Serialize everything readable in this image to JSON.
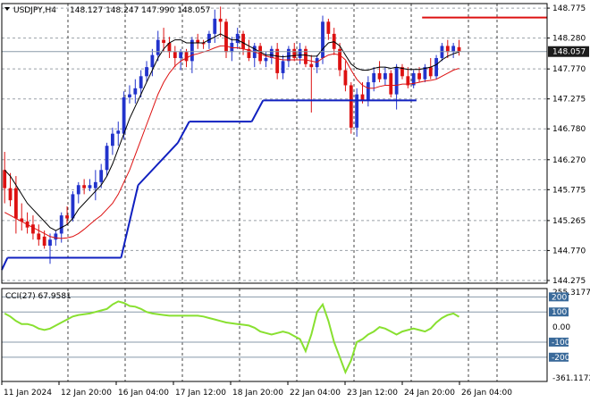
{
  "header": {
    "symbol_timeframe": "USDJPY,H4",
    "ohlc": "148.127 148.247 147.990 148.057",
    "current_price": "148.057"
  },
  "colors": {
    "bull": "#2233cc",
    "bear": "#dd1111",
    "ma_fast": "#000000",
    "ma_slow": "#dd1111",
    "support": "#1020c0",
    "resistance": "#dd1111",
    "cci": "#88e030",
    "grid": "#9aa0a8",
    "price_tag": "#1c1c1c"
  },
  "chart_data": [
    {
      "type": "candlestick",
      "title": "USDJPY,H4",
      "price_axis_labels": [
        "148.775",
        "148.280",
        "147.770",
        "147.275",
        "146.780",
        "146.270",
        "145.775",
        "145.265",
        "144.770",
        "144.275"
      ],
      "time_axis_labels": [
        "11 Jan 2024",
        "12 Jan 20:00",
        "16 Jan 04:00",
        "17 Jan 12:00",
        "18 Jan 20:00",
        "22 Jan 04:00",
        "23 Jan 12:00",
        "24 Jan 20:00",
        "26 Jan 04:00"
      ],
      "ylim": [
        144.23,
        148.85
      ],
      "candles": [
        {
          "o": 146.1,
          "h": 146.4,
          "l": 145.55,
          "c": 145.8
        },
        {
          "o": 145.8,
          "h": 146.05,
          "l": 145.5,
          "c": 145.6
        },
        {
          "o": 145.8,
          "h": 146.0,
          "l": 145.05,
          "c": 145.3
        },
        {
          "o": 145.3,
          "h": 145.55,
          "l": 145.1,
          "c": 145.25
        },
        {
          "o": 145.25,
          "h": 145.4,
          "l": 145.05,
          "c": 145.15
        },
        {
          "o": 145.2,
          "h": 145.35,
          "l": 144.95,
          "c": 145.05
        },
        {
          "o": 145.05,
          "h": 145.2,
          "l": 144.85,
          "c": 144.95
        },
        {
          "o": 145.0,
          "h": 145.1,
          "l": 144.8,
          "c": 144.85
        },
        {
          "o": 144.85,
          "h": 145.05,
          "l": 144.55,
          "c": 144.95
        },
        {
          "o": 144.95,
          "h": 145.1,
          "l": 144.85,
          "c": 145.05
        },
        {
          "o": 145.05,
          "h": 145.4,
          "l": 144.9,
          "c": 145.35
        },
        {
          "o": 145.35,
          "h": 145.5,
          "l": 145.2,
          "c": 145.3
        },
        {
          "o": 145.3,
          "h": 145.75,
          "l": 145.25,
          "c": 145.7
        },
        {
          "o": 145.7,
          "h": 145.9,
          "l": 145.55,
          "c": 145.85
        },
        {
          "o": 145.85,
          "h": 145.95,
          "l": 145.7,
          "c": 145.8
        },
        {
          "o": 145.8,
          "h": 145.95,
          "l": 145.75,
          "c": 145.85
        },
        {
          "o": 145.8,
          "h": 146.1,
          "l": 145.6,
          "c": 145.9
        },
        {
          "o": 145.9,
          "h": 146.2,
          "l": 145.8,
          "c": 146.1
        },
        {
          "o": 146.1,
          "h": 146.55,
          "l": 146.0,
          "c": 146.5
        },
        {
          "o": 146.5,
          "h": 146.8,
          "l": 146.35,
          "c": 146.7
        },
        {
          "o": 146.7,
          "h": 146.9,
          "l": 146.5,
          "c": 146.75
        },
        {
          "o": 146.7,
          "h": 147.4,
          "l": 146.6,
          "c": 147.3
        },
        {
          "o": 147.3,
          "h": 147.5,
          "l": 147.2,
          "c": 147.35
        },
        {
          "o": 147.35,
          "h": 147.6,
          "l": 147.2,
          "c": 147.45
        },
        {
          "o": 147.45,
          "h": 147.75,
          "l": 147.3,
          "c": 147.65
        },
        {
          "o": 147.65,
          "h": 147.9,
          "l": 147.55,
          "c": 147.8
        },
        {
          "o": 147.8,
          "h": 148.1,
          "l": 147.65,
          "c": 148.0
        },
        {
          "o": 148.0,
          "h": 148.4,
          "l": 147.9,
          "c": 148.25
        },
        {
          "o": 148.25,
          "h": 148.45,
          "l": 148.05,
          "c": 148.2
        },
        {
          "o": 148.2,
          "h": 148.3,
          "l": 147.95,
          "c": 148.05
        },
        {
          "o": 148.05,
          "h": 148.15,
          "l": 147.8,
          "c": 147.95
        },
        {
          "o": 147.95,
          "h": 148.1,
          "l": 147.75,
          "c": 148.05
        },
        {
          "o": 148.05,
          "h": 148.1,
          "l": 147.8,
          "c": 147.9
        },
        {
          "o": 147.9,
          "h": 148.3,
          "l": 147.7,
          "c": 148.25
        },
        {
          "o": 148.25,
          "h": 148.35,
          "l": 148.1,
          "c": 148.2
        },
        {
          "o": 148.2,
          "h": 148.25,
          "l": 148.1,
          "c": 148.18
        },
        {
          "o": 148.2,
          "h": 148.4,
          "l": 148.1,
          "c": 148.35
        },
        {
          "o": 148.35,
          "h": 148.75,
          "l": 148.2,
          "c": 148.6
        },
        {
          "o": 148.6,
          "h": 148.8,
          "l": 148.3,
          "c": 148.55
        },
        {
          "o": 148.55,
          "h": 148.6,
          "l": 147.95,
          "c": 148.05
        },
        {
          "o": 148.05,
          "h": 148.3,
          "l": 147.9,
          "c": 148.2
        },
        {
          "o": 148.2,
          "h": 148.45,
          "l": 148.1,
          "c": 148.35
        },
        {
          "o": 148.35,
          "h": 148.4,
          "l": 148.0,
          "c": 148.1
        },
        {
          "o": 148.1,
          "h": 148.25,
          "l": 147.9,
          "c": 147.95
        },
        {
          "o": 147.95,
          "h": 148.2,
          "l": 147.8,
          "c": 148.15
        },
        {
          "o": 148.15,
          "h": 148.2,
          "l": 147.85,
          "c": 147.9
        },
        {
          "o": 147.9,
          "h": 148.05,
          "l": 147.8,
          "c": 147.95
        },
        {
          "o": 147.95,
          "h": 148.15,
          "l": 147.85,
          "c": 148.1
        },
        {
          "o": 148.1,
          "h": 148.2,
          "l": 147.6,
          "c": 147.7
        },
        {
          "o": 147.7,
          "h": 148.0,
          "l": 147.6,
          "c": 147.9
        },
        {
          "o": 147.9,
          "h": 148.15,
          "l": 147.8,
          "c": 148.1
        },
        {
          "o": 148.1,
          "h": 148.2,
          "l": 147.9,
          "c": 147.95
        },
        {
          "o": 147.95,
          "h": 148.2,
          "l": 147.85,
          "c": 148.1
        },
        {
          "o": 148.1,
          "h": 148.15,
          "l": 147.8,
          "c": 147.85
        },
        {
          "o": 147.85,
          "h": 148.0,
          "l": 147.05,
          "c": 147.8
        },
        {
          "o": 147.8,
          "h": 148.0,
          "l": 147.7,
          "c": 147.95
        },
        {
          "o": 147.95,
          "h": 148.65,
          "l": 147.85,
          "c": 148.55
        },
        {
          "o": 148.55,
          "h": 148.6,
          "l": 148.25,
          "c": 148.35
        },
        {
          "o": 148.35,
          "h": 148.45,
          "l": 148.0,
          "c": 148.1
        },
        {
          "o": 148.1,
          "h": 148.2,
          "l": 147.65,
          "c": 147.75
        },
        {
          "o": 147.75,
          "h": 147.9,
          "l": 147.4,
          "c": 147.5
        },
        {
          "o": 147.5,
          "h": 147.55,
          "l": 146.7,
          "c": 146.8
        },
        {
          "o": 146.8,
          "h": 147.45,
          "l": 146.65,
          "c": 147.35
        },
        {
          "o": 147.35,
          "h": 147.55,
          "l": 147.2,
          "c": 147.25
        },
        {
          "o": 147.25,
          "h": 147.65,
          "l": 147.15,
          "c": 147.55
        },
        {
          "o": 147.55,
          "h": 147.8,
          "l": 147.4,
          "c": 147.7
        },
        {
          "o": 147.7,
          "h": 147.9,
          "l": 147.55,
          "c": 147.6
        },
        {
          "o": 147.6,
          "h": 147.8,
          "l": 147.5,
          "c": 147.7
        },
        {
          "o": 147.7,
          "h": 147.75,
          "l": 147.3,
          "c": 147.35
        },
        {
          "o": 147.35,
          "h": 147.85,
          "l": 147.1,
          "c": 147.8
        },
        {
          "o": 147.8,
          "h": 147.85,
          "l": 147.6,
          "c": 147.65
        },
        {
          "o": 147.65,
          "h": 147.8,
          "l": 147.45,
          "c": 147.5
        },
        {
          "o": 147.5,
          "h": 147.75,
          "l": 147.45,
          "c": 147.7
        },
        {
          "o": 147.7,
          "h": 147.8,
          "l": 147.55,
          "c": 147.6
        },
        {
          "o": 147.6,
          "h": 147.85,
          "l": 147.55,
          "c": 147.8
        },
        {
          "o": 147.8,
          "h": 147.95,
          "l": 147.6,
          "c": 147.65
        },
        {
          "o": 147.65,
          "h": 148.0,
          "l": 147.6,
          "c": 147.95
        },
        {
          "o": 147.95,
          "h": 148.2,
          "l": 147.9,
          "c": 148.15
        },
        {
          "o": 148.15,
          "h": 148.25,
          "l": 147.95,
          "c": 148.05
        },
        {
          "o": 148.05,
          "h": 148.2,
          "l": 147.95,
          "c": 148.15
        },
        {
          "o": 148.13,
          "h": 148.25,
          "l": 147.99,
          "c": 148.06
        }
      ],
      "ma_fast": [
        146.1,
        146.0,
        145.85,
        145.7,
        145.55,
        145.45,
        145.35,
        145.25,
        145.15,
        145.1,
        145.15,
        145.2,
        145.3,
        145.45,
        145.55,
        145.65,
        145.75,
        145.85,
        146.0,
        146.2,
        146.45,
        146.7,
        146.95,
        147.15,
        147.35,
        147.55,
        147.75,
        147.95,
        148.1,
        148.2,
        148.25,
        148.25,
        148.2,
        148.2,
        148.2,
        148.2,
        148.25,
        148.3,
        148.35,
        148.3,
        148.25,
        148.25,
        148.2,
        148.15,
        148.1,
        148.05,
        148.0,
        148.0,
        147.98,
        147.97,
        147.98,
        147.99,
        148.0,
        148.0,
        147.98,
        147.98,
        148.1,
        148.2,
        148.22,
        148.15,
        148.0,
        147.85,
        147.78,
        147.75,
        147.75,
        147.78,
        147.8,
        147.8,
        147.78,
        147.8,
        147.78,
        147.76,
        147.76,
        147.76,
        147.78,
        147.8,
        147.84,
        147.92,
        147.98,
        148.02,
        148.05
      ],
      "ma_slow": [
        145.4,
        145.35,
        145.3,
        145.25,
        145.2,
        145.15,
        145.1,
        145.05,
        145.0,
        144.98,
        144.97,
        144.98,
        145.0,
        145.05,
        145.12,
        145.2,
        145.28,
        145.35,
        145.45,
        145.55,
        145.7,
        145.9,
        146.1,
        146.35,
        146.6,
        146.85,
        147.1,
        147.35,
        147.55,
        147.7,
        147.82,
        147.9,
        147.95,
        148.0,
        148.02,
        148.05,
        148.08,
        148.12,
        148.15,
        148.15,
        148.12,
        148.12,
        148.1,
        148.08,
        148.05,
        148.02,
        147.98,
        147.96,
        147.94,
        147.92,
        147.92,
        147.92,
        147.92,
        147.92,
        147.9,
        147.88,
        147.95,
        148.0,
        148.02,
        148.0,
        147.92,
        147.75,
        147.6,
        147.5,
        147.45,
        147.45,
        147.48,
        147.5,
        147.5,
        147.5,
        147.52,
        147.52,
        147.53,
        147.55,
        147.57,
        147.58,
        147.6,
        147.65,
        147.7,
        147.75,
        147.78
      ],
      "support_line": [
        {
          "from": 0,
          "to": 1,
          "y0": 144.45,
          "y1": 144.65
        },
        {
          "from": 1,
          "to": 21,
          "y0": 144.65,
          "y1": 144.65
        },
        {
          "from": 21,
          "to": 24,
          "y0": 144.65,
          "y1": 145.85
        },
        {
          "from": 24,
          "to": 31,
          "y0": 145.85,
          "y1": 146.55
        },
        {
          "from": 31,
          "to": 33,
          "y0": 146.55,
          "y1": 146.9
        },
        {
          "from": 33,
          "to": 44,
          "y0": 146.9,
          "y1": 146.9
        },
        {
          "from": 44,
          "to": 46,
          "y0": 146.9,
          "y1": 147.25
        },
        {
          "from": 46,
          "to": 73,
          "y0": 147.25,
          "y1": 147.25
        }
      ],
      "resistance_level": {
        "from": 74,
        "to": 96,
        "value": 148.62
      },
      "current_price": 148.057
    },
    {
      "type": "line",
      "title": "CCI(27) 67.9581",
      "ylim": [
        -361.1172,
        255.3177
      ],
      "axis_labels": [
        "255.3177",
        "200",
        "100",
        "0.00",
        "-100",
        "-200",
        "-361.1172"
      ],
      "levels": [
        200,
        100,
        -100,
        -200
      ],
      "values": [
        90,
        70,
        40,
        20,
        20,
        10,
        -10,
        -20,
        -10,
        10,
        30,
        50,
        70,
        80,
        85,
        90,
        100,
        110,
        120,
        150,
        170,
        160,
        140,
        135,
        120,
        100,
        90,
        85,
        80,
        75,
        75,
        75,
        75,
        75,
        75,
        70,
        60,
        50,
        40,
        30,
        25,
        20,
        15,
        10,
        -5,
        -30,
        -40,
        -50,
        -40,
        -30,
        -40,
        -60,
        -80,
        -160,
        -50,
        100,
        150,
        40,
        -100,
        -200,
        -300,
        -220,
        -100,
        -80,
        -50,
        -30,
        0,
        -10,
        -30,
        -50,
        -30,
        -20,
        -10,
        -20,
        -30,
        -10,
        30,
        60,
        80,
        90,
        67.9581
      ]
    }
  ]
}
